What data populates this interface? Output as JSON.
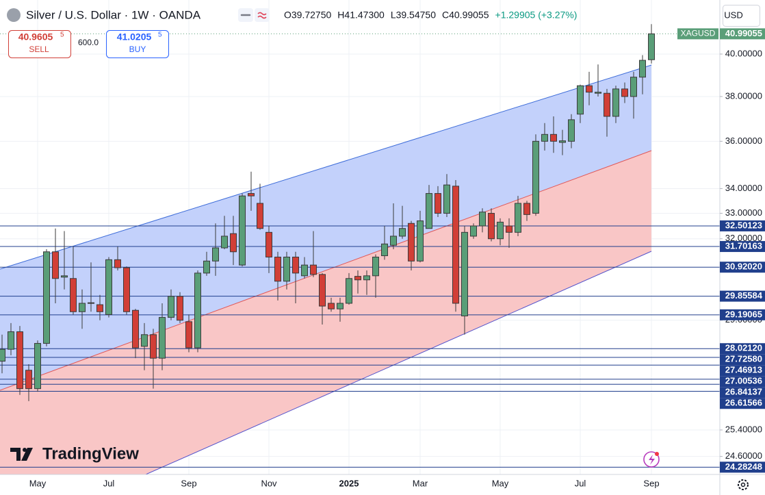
{
  "header": {
    "symbol_title": "Silver / U.S. Dollar · 1W · OANDA",
    "legend": [
      "O39.72750",
      "H41.47300",
      "L39.54750",
      "C40.99055",
      "+1.29905 (+3.27%)"
    ],
    "currency": "USD"
  },
  "trade": {
    "sell_price": "40.9605",
    "sell_price_last_digit": "5",
    "sell_label": "SELL",
    "quantity": "600.0",
    "buy_price": "41.0205",
    "buy_price_last_digit": "5",
    "buy_label": "BUY"
  },
  "branding": "TradingView",
  "chart_data": {
    "type": "candlestick",
    "symbol": "XAGUSD",
    "categories": [
      null,
      null,
      null,
      null,
      "May",
      null,
      null,
      null,
      null,
      null,
      null,
      null,
      "Jul",
      null,
      null,
      null,
      null,
      null,
      null,
      null,
      null,
      "Sep",
      null,
      null,
      null,
      null,
      null,
      null,
      null,
      null,
      "Nov",
      null,
      null,
      null,
      null,
      null,
      null,
      null,
      null,
      "2025",
      null,
      null,
      null,
      null,
      null,
      null,
      null,
      "Mar",
      null,
      null,
      null,
      null,
      null,
      null,
      null,
      null,
      "May",
      null,
      null,
      null,
      null,
      null,
      null,
      null,
      null,
      "Jul",
      null,
      null,
      null,
      null,
      null,
      null,
      null,
      "Sep"
    ],
    "open": [
      27.6,
      28.0,
      28.6,
      27.3,
      26.7,
      28.2,
      31.5,
      30.55,
      30.5,
      29.3,
      29.6,
      29.55,
      29.2,
      31.2,
      30.9,
      29.35,
      28.1,
      28.5,
      27.7,
      29.1,
      29.85,
      28.95,
      28.05,
      30.7,
      31.15,
      31.65,
      32.2,
      31.0,
      33.8,
      33.4,
      32.25,
      31.3,
      30.4,
      31.3,
      30.6,
      31.0,
      30.65,
      29.6,
      29.4,
      29.6,
      30.58,
      30.45,
      30.6,
      31.35,
      31.75,
      32.1,
      32.6,
      31.15,
      32.4,
      33.8,
      33.0,
      34.1,
      29.15,
      32.1,
      32.5,
      33.0,
      32.0,
      32.5,
      32.25,
      33.4,
      33.0,
      36.0,
      36.3,
      35.95,
      36.0,
      37.2,
      38.5,
      38.15,
      38.15,
      37.1,
      38.35,
      38.0,
      38.9,
      39.7275
    ],
    "high": [
      28.5,
      28.9,
      28.8,
      27.5,
      28.3,
      31.6,
      32.4,
      32.3,
      31.7,
      30.1,
      31.1,
      29.9,
      31.3,
      31.7,
      30.95,
      29.4,
      28.9,
      28.7,
      29.6,
      30.1,
      30.0,
      29.2,
      30.8,
      31.5,
      32.6,
      32.9,
      32.9,
      33.8,
      34.7,
      34.2,
      32.5,
      31.5,
      31.5,
      31.5,
      31.3,
      32.3,
      30.7,
      29.8,
      29.8,
      30.7,
      30.8,
      30.8,
      31.4,
      32.5,
      33.4,
      33.3,
      32.7,
      33.1,
      34.15,
      34.1,
      34.6,
      34.35,
      32.5,
      32.6,
      33.2,
      33.2,
      32.8,
      32.8,
      33.7,
      33.5,
      36.3,
      36.8,
      37.1,
      36.5,
      37.2,
      38.55,
      39.15,
      39.5,
      38.35,
      38.5,
      38.65,
      39.15,
      39.95,
      41.473
    ],
    "low": [
      27.2,
      27.8,
      26.5,
      26.3,
      26.6,
      28.1,
      29.6,
      30.1,
      29.2,
      28.7,
      29.3,
      29.0,
      29.1,
      30.8,
      29.2,
      27.7,
      27.3,
      26.7,
      27.3,
      29.0,
      28.9,
      27.9,
      27.9,
      30.6,
      30.6,
      31.6,
      31.0,
      30.95,
      33.1,
      32.35,
      30.7,
      29.7,
      30.1,
      29.6,
      30.5,
      30.55,
      28.85,
      29.3,
      28.95,
      29.55,
      29.95,
      29.9,
      29.8,
      31.2,
      31.6,
      32.0,
      30.8,
      31.1,
      32.4,
      32.85,
      32.85,
      29.3,
      28.5,
      32.0,
      32.25,
      31.9,
      31.75,
      31.65,
      32.1,
      32.7,
      32.9,
      35.6,
      35.5,
      35.4,
      35.7,
      36.8,
      37.6,
      38.0,
      36.2,
      36.8,
      37.7,
      37.0,
      38.1,
      39.5475
    ],
    "close": [
      28.0,
      28.6,
      26.7,
      26.7,
      28.2,
      31.5,
      30.5,
      30.6,
      29.3,
      29.6,
      29.62,
      29.3,
      31.2,
      30.9,
      29.3,
      28.05,
      28.5,
      27.7,
      29.1,
      29.85,
      29.0,
      28.05,
      30.7,
      31.15,
      31.65,
      32.1,
      31.5,
      33.7,
      33.7,
      32.4,
      31.3,
      30.4,
      31.3,
      30.7,
      31.0,
      30.65,
      29.5,
      29.4,
      29.6,
      30.5,
      30.45,
      30.6,
      31.3,
      31.8,
      32.1,
      32.4,
      31.15,
      32.7,
      33.8,
      33.0,
      34.15,
      29.6,
      32.25,
      32.5,
      33.05,
      32.0,
      32.65,
      32.25,
      33.4,
      32.95,
      36.0,
      36.3,
      36.0,
      36.02,
      36.95,
      38.5,
      38.2,
      38.2,
      37.1,
      38.35,
      38.0,
      38.9,
      39.7,
      40.99055
    ],
    "up_color": "#5a9e78",
    "down_color": "#d13f37",
    "border_color": "#3a3a3a",
    "log_scale": true,
    "grid": true,
    "ylim": [
      24.07,
      42.7
    ],
    "yticks": [
      {
        "value": 40,
        "label": "40.00000"
      },
      {
        "value": 38,
        "label": "38.00000"
      },
      {
        "value": 36,
        "label": "36.00000"
      },
      {
        "value": 34,
        "label": "34.00000"
      },
      {
        "value": 33,
        "label": "33.00000"
      },
      {
        "value": 32,
        "label": "32.00000"
      },
      {
        "value": 29,
        "label": "29.00000"
      },
      {
        "value": 25.4,
        "label": "25.40000"
      },
      {
        "value": 24.6,
        "label": "24.60000"
      }
    ],
    "levels": [
      32.50123,
      31.70163,
      {
        "value": 30.9202,
        "label": "30.92020"
      },
      29.85584,
      29.19065,
      {
        "value": 28.0212,
        "label": "28.02120"
      },
      {
        "value": 27.7258,
        "label": "27.72580"
      },
      27.46913,
      27.00536,
      26.84137,
      26.61566,
      24.28248
    ],
    "level_color": "#203f8c"
  }
}
